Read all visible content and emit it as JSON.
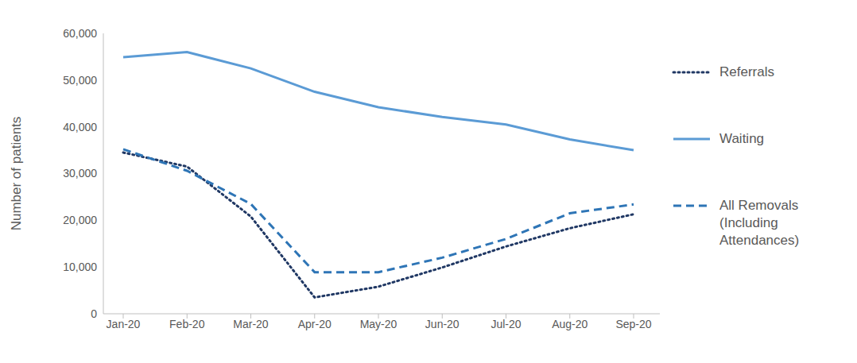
{
  "chart_data": {
    "type": "line",
    "categories": [
      "Jan-20",
      "Feb-20",
      "Mar-20",
      "Apr-20",
      "May-20",
      "Jun-20",
      "Jul-20",
      "Aug-20",
      "Sep-20"
    ],
    "series": [
      {
        "name": "Referrals",
        "color": "#203864",
        "line_style": "dotted",
        "values": [
          34500,
          31500,
          20800,
          3500,
          5800,
          9900,
          14400,
          18300,
          21300
        ]
      },
      {
        "name": "Waiting",
        "color": "#5b9bd5",
        "line_style": "solid",
        "values": [
          54900,
          56000,
          52500,
          47500,
          44200,
          42100,
          40500,
          37300,
          35000
        ]
      },
      {
        "name": "All Removals (Including Attendances)",
        "color": "#2e75b6",
        "line_style": "dashed",
        "values": [
          35200,
          30600,
          23500,
          8900,
          8900,
          12000,
          16000,
          21500,
          23400
        ]
      }
    ],
    "y_label": "Number of patients",
    "ylim": [
      0,
      60000
    ],
    "yticks": [
      0,
      {
        "value": 10000,
        "label": "10,000"
      },
      {
        "value": 20000,
        "label": "20,000"
      },
      {
        "value": 30000,
        "label": "30,000"
      },
      {
        "value": 40000,
        "label": "40,000"
      },
      {
        "value": 50000,
        "label": "50,000"
      },
      {
        "value": 60000,
        "label": "60,000"
      }
    ],
    "grid": false,
    "legend": "right"
  }
}
